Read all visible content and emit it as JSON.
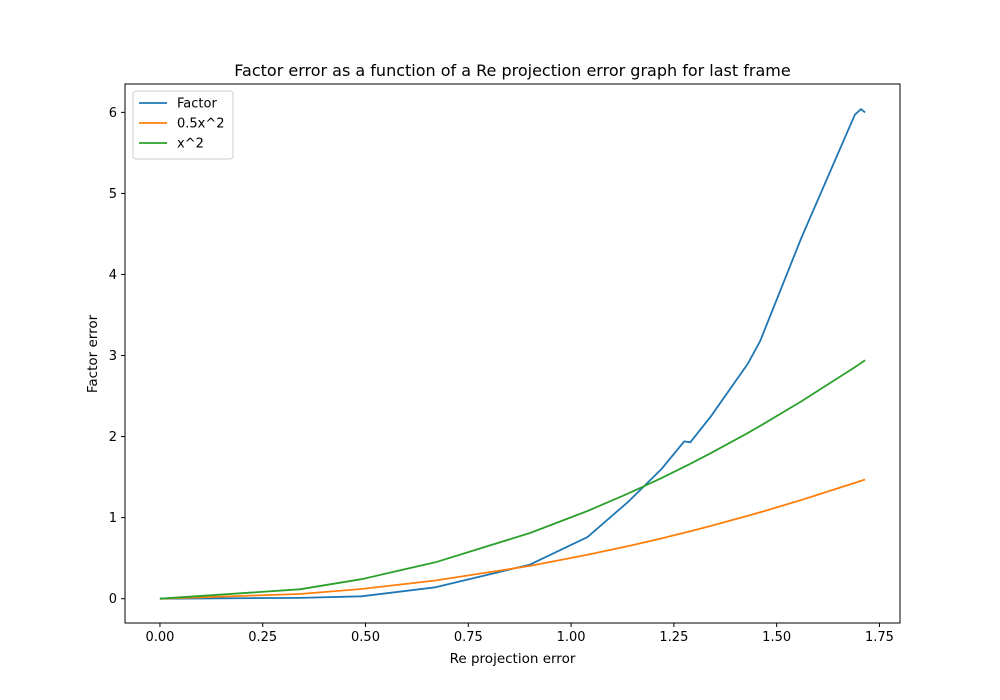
{
  "chart_data": {
    "type": "line",
    "title": "Factor error as a function of a Re projection error graph for last frame",
    "xlabel": "Re projection error",
    "ylabel": "Factor error",
    "xlim": [
      -0.085,
      1.8
    ],
    "ylim": [
      -0.3,
      6.35
    ],
    "xticks": [
      0.0,
      0.25,
      0.5,
      0.75,
      1.0,
      1.25,
      1.5,
      1.75
    ],
    "xtick_labels": [
      "0.00",
      "0.25",
      "0.50",
      "0.75",
      "1.00",
      "1.25",
      "1.50",
      "1.75"
    ],
    "yticks": [
      0,
      1,
      2,
      3,
      4,
      5,
      6
    ],
    "ytick_labels": [
      "0",
      "1",
      "2",
      "3",
      "4",
      "5",
      "6"
    ],
    "grid": false,
    "legend_position": "top-left",
    "series": [
      {
        "name": "Factor",
        "color": "#1f77b4",
        "x": [
          0.0,
          0.34,
          0.49,
          0.67,
          0.9,
          1.04,
          1.14,
          1.22,
          1.275,
          1.29,
          1.34,
          1.43,
          1.46,
          1.56,
          1.69,
          1.705,
          1.715
        ],
        "y": [
          0.0,
          0.01,
          0.03,
          0.14,
          0.42,
          0.76,
          1.2,
          1.6,
          1.94,
          1.93,
          2.25,
          2.9,
          3.18,
          4.45,
          5.97,
          6.04,
          6.0
        ]
      },
      {
        "name": "0.5x^2",
        "color": "#ff7f0e",
        "x": [
          0.0,
          0.34,
          0.49,
          0.67,
          0.9,
          1.04,
          1.14,
          1.22,
          1.29,
          1.34,
          1.43,
          1.46,
          1.56,
          1.69,
          1.715
        ],
        "y": [
          0.0,
          0.058,
          0.12,
          0.224,
          0.405,
          0.541,
          0.65,
          0.744,
          0.832,
          0.898,
          1.022,
          1.066,
          1.217,
          1.428,
          1.471
        ]
      },
      {
        "name": "x^2",
        "color": "#2ca02c",
        "x": [
          0.0,
          0.34,
          0.49,
          0.67,
          0.9,
          1.04,
          1.14,
          1.22,
          1.29,
          1.34,
          1.43,
          1.46,
          1.56,
          1.69,
          1.715
        ],
        "y": [
          0.0,
          0.116,
          0.24,
          0.449,
          0.81,
          1.082,
          1.3,
          1.488,
          1.664,
          1.796,
          2.045,
          2.132,
          2.434,
          2.856,
          2.941
        ]
      }
    ]
  }
}
